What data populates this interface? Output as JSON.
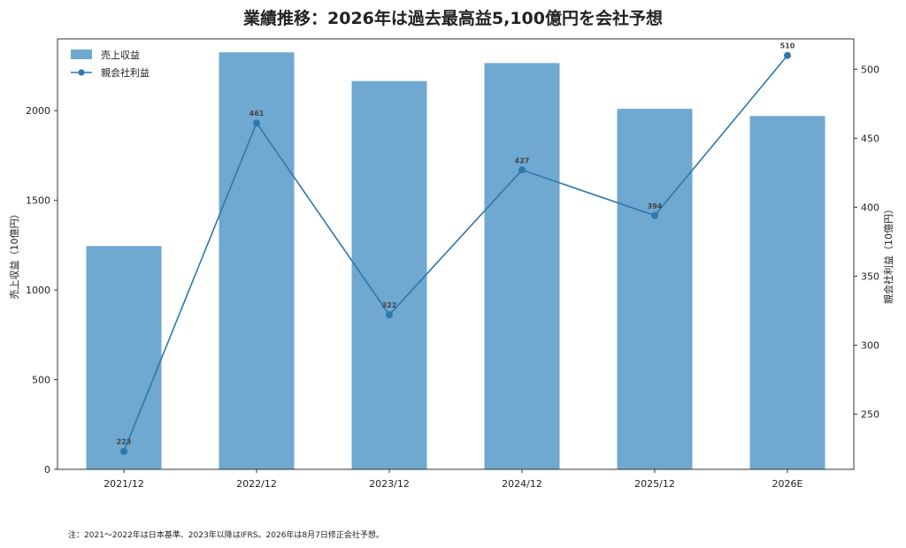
{
  "title": "業績推移：2026年は過去最高益5,100億円を会社予想",
  "note": "注：2021〜2022年は日本基準、2023年以降はIFRS。2026年は8月7日修正会社予想。",
  "colors": {
    "bar": "#6fa8d0",
    "line": "#2f77ad",
    "axis": "#333333"
  },
  "chart_data": {
    "type": "bar",
    "categories": [
      "2021/12",
      "2022/12",
      "2023/12",
      "2024/12",
      "2025/12",
      "2026E"
    ],
    "series": [
      {
        "name": "売上収益",
        "type": "bar",
        "axis": "left",
        "values": [
          1245,
          2325,
          2165,
          2265,
          2010,
          1970
        ]
      },
      {
        "name": "親会社利益",
        "type": "line",
        "axis": "right",
        "values": [
          223,
          461,
          322,
          427,
          394,
          510
        ],
        "data_labels": [
          "223",
          "461",
          "322",
          "427",
          "394",
          "510"
        ]
      }
    ],
    "ylabel_left": "売上収益（10億円）",
    "ylabel_right": "親会社利益（10億円）",
    "ylim_left": [
      0,
      2400
    ],
    "ylim_right": [
      210,
      522
    ],
    "yticks_left": [
      "0",
      "500",
      "1000",
      "1500",
      "2000"
    ],
    "yticks_right": [
      "250",
      "300",
      "350",
      "400",
      "450",
      "500"
    ],
    "legend": "top-left",
    "grid": false
  }
}
